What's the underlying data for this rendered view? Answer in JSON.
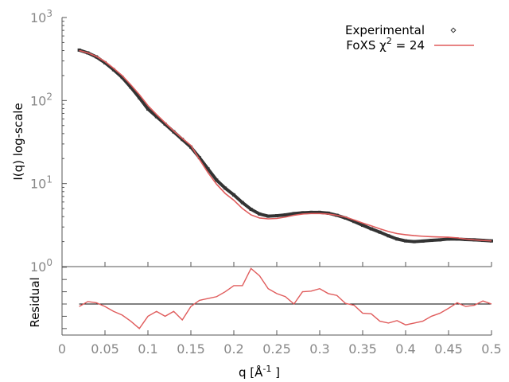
{
  "chart_data": [
    {
      "type": "line",
      "panel": "intensity",
      "ylabel": "I(q) log-scale",
      "yscale": "log",
      "ylim": [
        1,
        1000
      ],
      "xlim": [
        0,
        0.5
      ],
      "yticks": [
        {
          "value": 1,
          "base": "10",
          "exp": "0"
        },
        {
          "value": 10,
          "base": "10",
          "exp": "1"
        },
        {
          "value": 100,
          "base": "10",
          "exp": "2"
        },
        {
          "value": 1000,
          "base": "10",
          "exp": "3"
        }
      ],
      "legend_placement": "top-right",
      "x": [
        0.02,
        0.03,
        0.04,
        0.05,
        0.06,
        0.07,
        0.08,
        0.09,
        0.1,
        0.11,
        0.12,
        0.13,
        0.14,
        0.15,
        0.16,
        0.17,
        0.18,
        0.19,
        0.2,
        0.21,
        0.22,
        0.23,
        0.24,
        0.25,
        0.26,
        0.27,
        0.28,
        0.29,
        0.3,
        0.31,
        0.32,
        0.33,
        0.34,
        0.35,
        0.36,
        0.37,
        0.38,
        0.39,
        0.4,
        0.41,
        0.42,
        0.43,
        0.44,
        0.45,
        0.46,
        0.47,
        0.48,
        0.49,
        0.5
      ],
      "series": [
        {
          "name": "Experimental",
          "style": "points",
          "color": "#333333",
          "values": [
            405,
            375,
            335,
            285,
            235,
            190,
            145,
            108,
            79,
            64,
            52,
            42,
            34,
            27.5,
            20.5,
            15,
            11,
            8.8,
            7.3,
            5.9,
            4.9,
            4.3,
            4.05,
            4.1,
            4.2,
            4.35,
            4.45,
            4.5,
            4.5,
            4.4,
            4.15,
            3.85,
            3.5,
            3.15,
            2.85,
            2.6,
            2.35,
            2.15,
            2.04,
            2.0,
            2.03,
            2.07,
            2.1,
            2.15,
            2.15,
            2.12,
            2.1,
            2.07,
            2.04
          ]
        },
        {
          "name": "FoXS χ² = 24",
          "name_prefix": "FoXS χ",
          "name_sup": "2",
          "name_suffix": " = 24",
          "style": "line",
          "color": "#e05c5c",
          "values": [
            400,
            375,
            340,
            295,
            245,
            200,
            155,
            118,
            87,
            68,
            54,
            43,
            35,
            28.8,
            19.5,
            13.5,
            9.8,
            7.6,
            6.3,
            5.0,
            4.2,
            3.85,
            3.76,
            3.8,
            3.95,
            4.15,
            4.3,
            4.36,
            4.36,
            4.3,
            4.15,
            3.95,
            3.65,
            3.35,
            3.1,
            2.85,
            2.65,
            2.5,
            2.42,
            2.36,
            2.32,
            2.29,
            2.27,
            2.26,
            2.22,
            2.15,
            2.1,
            2.07,
            2.04
          ]
        }
      ]
    },
    {
      "type": "line",
      "panel": "residual",
      "ylabel": "Residual",
      "xlabel_prefix": "q [Å",
      "xlabel_sup": "-1",
      "xlabel_suffix": " ]",
      "xlim": [
        0,
        0.5
      ],
      "ylim": [
        -2.53,
        3.05
      ],
      "xticks": [
        "0",
        "0.05",
        "0.1",
        "0.15",
        "0.2",
        "0.25",
        "0.3",
        "0.35",
        "0.4",
        "0.45",
        "0.5"
      ],
      "xtick_values": [
        0,
        0.05,
        0.1,
        0.15,
        0.2,
        0.25,
        0.3,
        0.35,
        0.4,
        0.45,
        0.5
      ],
      "zero_line_color": "#000000",
      "color": "#e05c5c",
      "x": [
        0.02,
        0.03,
        0.04,
        0.05,
        0.06,
        0.07,
        0.08,
        0.09,
        0.1,
        0.11,
        0.12,
        0.13,
        0.14,
        0.15,
        0.16,
        0.17,
        0.18,
        0.19,
        0.2,
        0.21,
        0.22,
        0.23,
        0.24,
        0.25,
        0.26,
        0.27,
        0.28,
        0.29,
        0.3,
        0.31,
        0.32,
        0.33,
        0.34,
        0.35,
        0.36,
        0.37,
        0.38,
        0.39,
        0.4,
        0.41,
        0.42,
        0.43,
        0.44,
        0.45,
        0.46,
        0.47,
        0.48,
        0.49,
        0.5
      ],
      "values": [
        -0.2,
        0.2,
        0.1,
        -0.2,
        -0.6,
        -0.9,
        -1.4,
        -2.0,
        -1.0,
        -0.6,
        -1.0,
        -0.6,
        -1.3,
        -0.2,
        0.3,
        0.45,
        0.6,
        1.0,
        1.5,
        1.5,
        2.9,
        2.3,
        1.25,
        0.85,
        0.6,
        0,
        1.0,
        1.05,
        1.25,
        0.85,
        0.7,
        0.05,
        -0.1,
        -0.75,
        -0.8,
        -1.4,
        -1.55,
        -1.35,
        -1.7,
        -1.55,
        -1.4,
        -1.0,
        -0.75,
        -0.35,
        0.1,
        -0.2,
        -0.1,
        0.25,
        0
      ]
    }
  ]
}
